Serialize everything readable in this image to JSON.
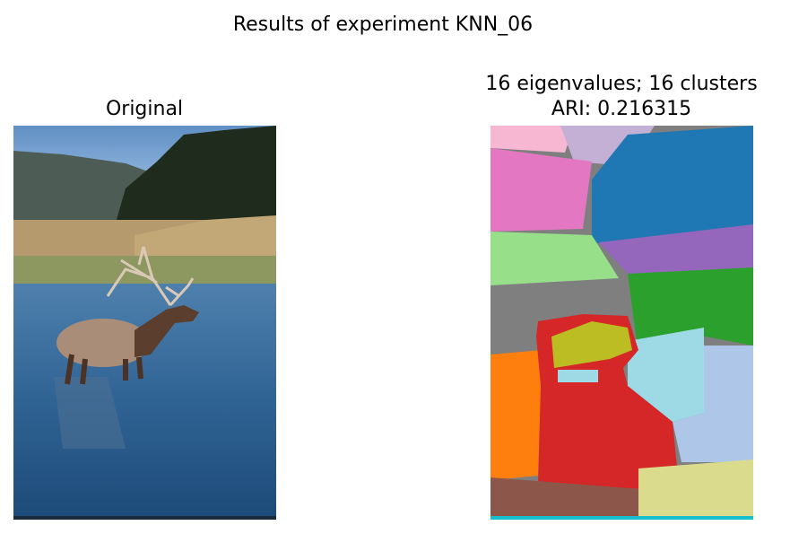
{
  "title": "Results of experiment KNN_06",
  "panels": [
    {
      "title_lines": [
        "Original"
      ]
    },
    {
      "title_lines": [
        "16 eigenvalues; 16 clusters",
        "ARI: 0.216315"
      ]
    }
  ]
}
